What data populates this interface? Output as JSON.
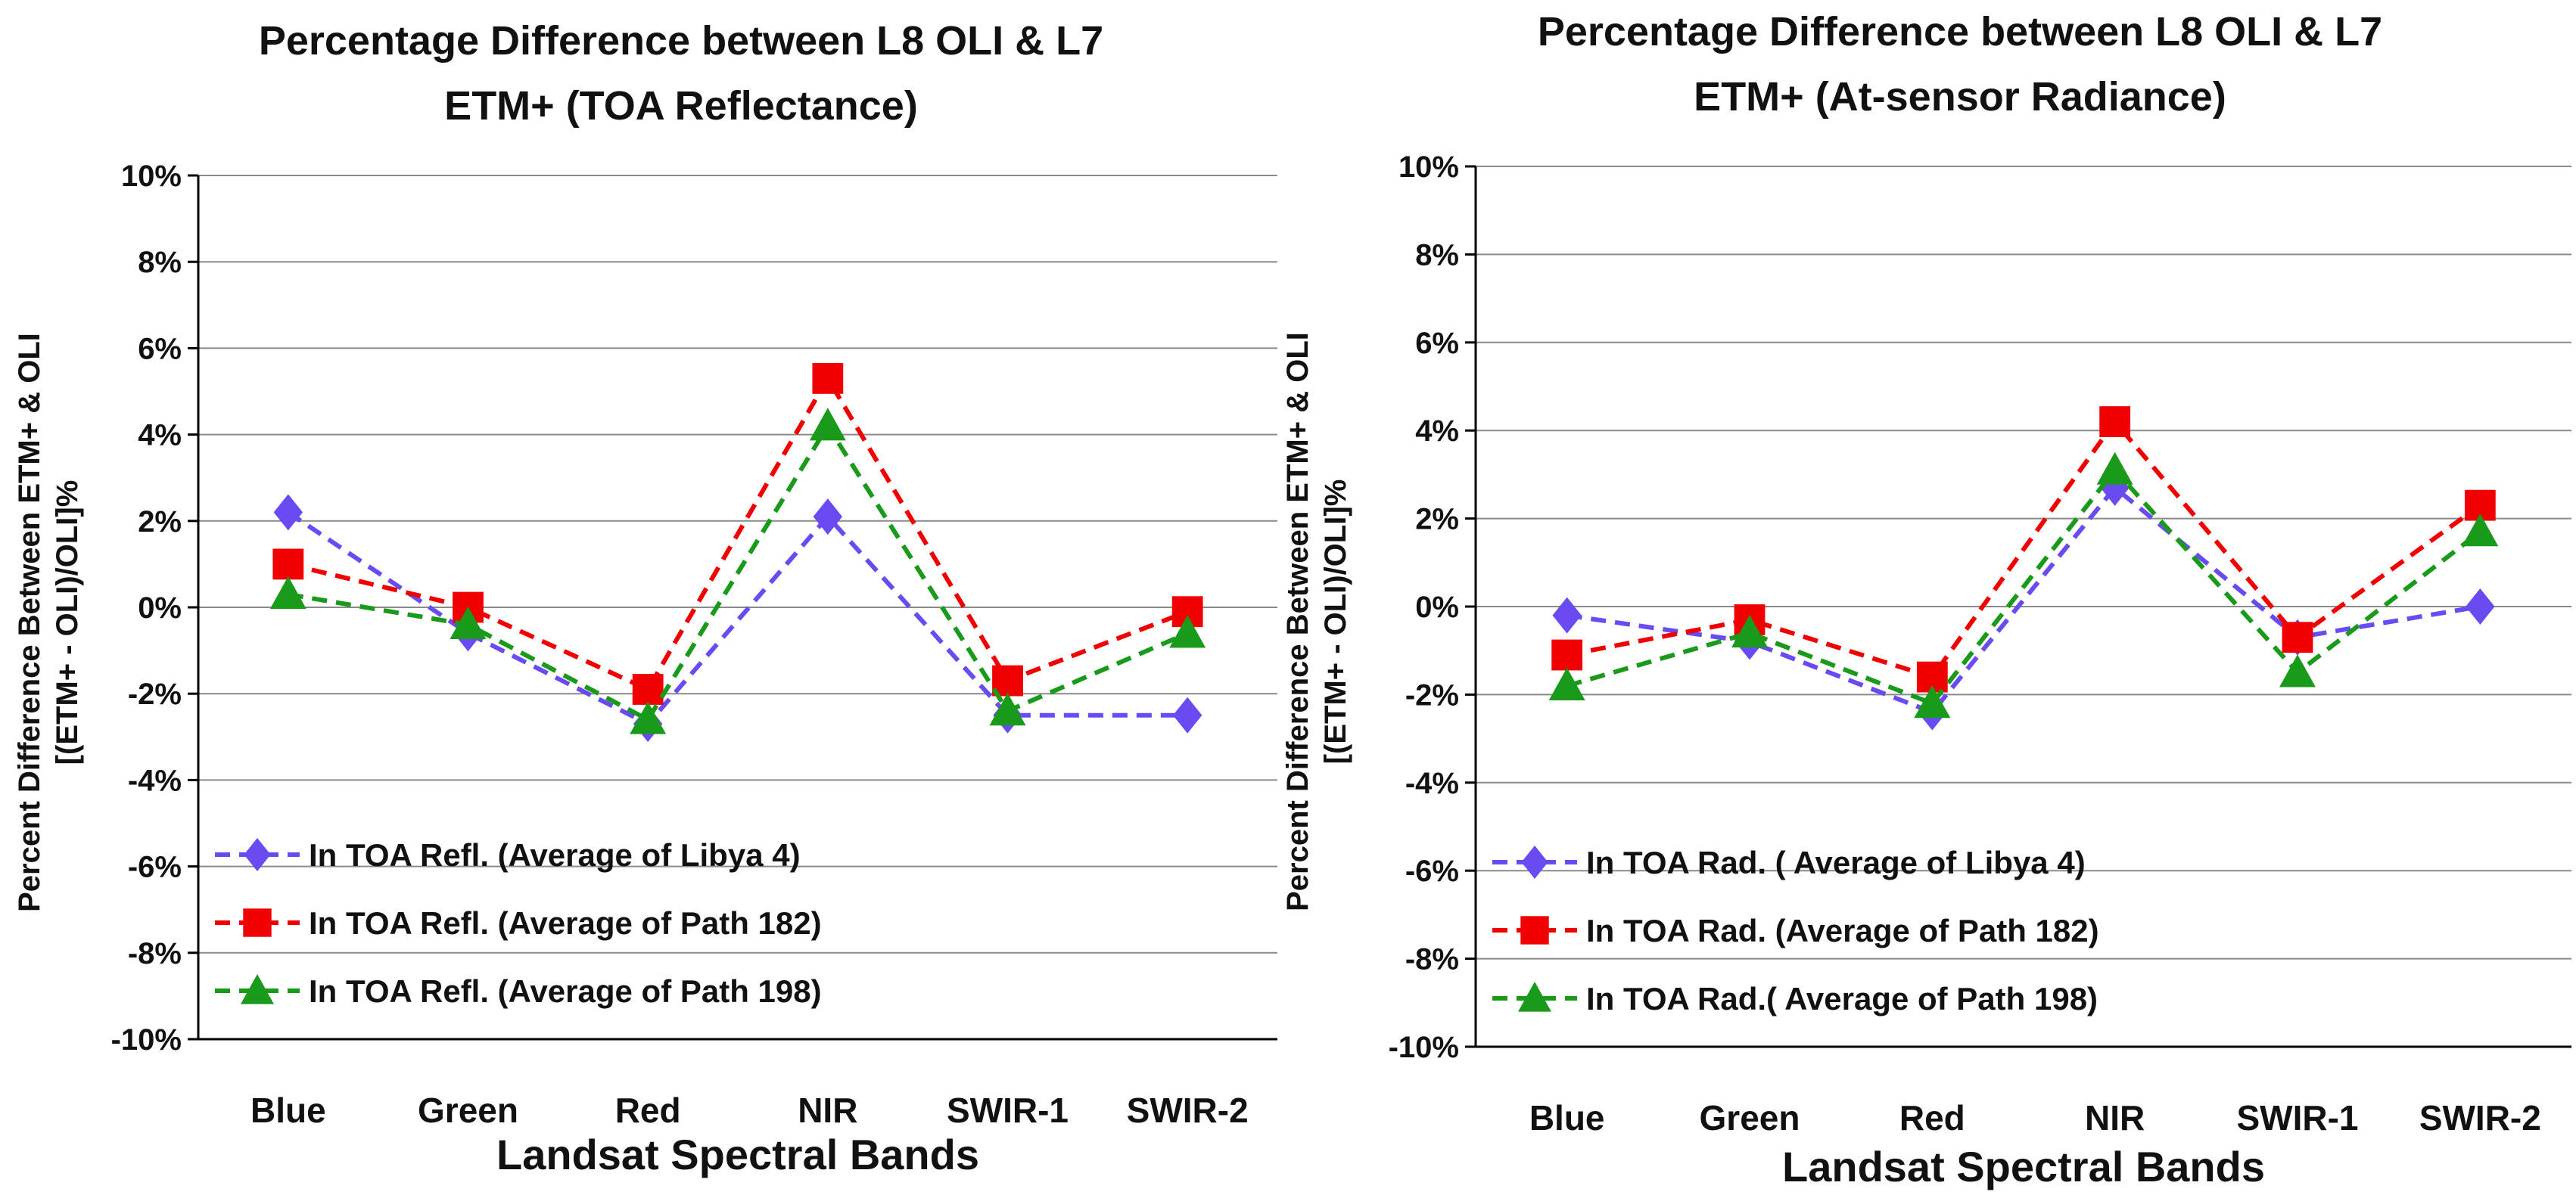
{
  "chart_data": [
    {
      "type": "line",
      "title_lines": [
        "Percentage Difference between L8 OLI & L7",
        "ETM+ (TOA Reflectance)"
      ],
      "xlabel": "Landsat Spectral Bands",
      "ylabel_lines": [
        "Percent Difference Between ETM+ & OLI",
        "[(ETM+ - OLI)/OLI]%"
      ],
      "categories": [
        "Blue",
        "Green",
        "Red",
        "NIR",
        "SWIR-1",
        "SWIR-2"
      ],
      "ylim": [
        -10,
        10
      ],
      "yticks": [
        "-10%",
        "-8%",
        "-6%",
        "-4%",
        "-2%",
        "0%",
        "2%",
        "4%",
        "6%",
        "8%",
        "10%"
      ],
      "grid": true,
      "legend_position": "bottom-left",
      "series": [
        {
          "name": "In TOA Refl. (Average of Libya 4)",
          "color": "#6a4bf2",
          "marker": "diamond",
          "values": [
            2.2,
            -0.6,
            -2.7,
            2.1,
            -2.5,
            -2.5
          ]
        },
        {
          "name": "In TOA Refl. (Average of Path 182)",
          "color": "#f00000",
          "marker": "square",
          "values": [
            1.0,
            0.0,
            -1.9,
            5.3,
            -1.7,
            -0.1
          ]
        },
        {
          "name": "In TOA Refl. (Average of Path 198)",
          "color": "#1a9a1a",
          "marker": "triangle",
          "values": [
            0.3,
            -0.4,
            -2.6,
            4.2,
            -2.4,
            -0.6
          ]
        }
      ]
    },
    {
      "type": "line",
      "title_lines": [
        "Percentage Difference between L8 OLI & L7",
        "ETM+ (At-sensor Radiance)"
      ],
      "xlabel": "Landsat Spectral Bands",
      "ylabel_lines": [
        "Percent Difference Between ETM+ & OLI",
        "[(ETM+ - OLI)/OLI]%"
      ],
      "categories": [
        "Blue",
        "Green",
        "Red",
        "NIR",
        "SWIR-1",
        "SWIR-2"
      ],
      "ylim": [
        -10,
        10
      ],
      "yticks": [
        "-10%",
        "-8%",
        "-6%",
        "-4%",
        "-2%",
        "0%",
        "2%",
        "4%",
        "6%",
        "8%",
        "10%"
      ],
      "grid": true,
      "legend_position": "bottom-left",
      "series": [
        {
          "name": "In TOA Rad. ( Average of Libya 4)",
          "color": "#6a4bf2",
          "marker": "diamond",
          "values": [
            -0.2,
            -0.8,
            -2.4,
            2.7,
            -0.7,
            0.0
          ]
        },
        {
          "name": "In TOA Rad. (Average of Path 182)",
          "color": "#f00000",
          "marker": "square",
          "values": [
            -1.1,
            -0.3,
            -1.6,
            4.2,
            -0.7,
            2.3
          ]
        },
        {
          "name": "In TOA Rad.( Average of Path 198)",
          "color": "#1a9a1a",
          "marker": "triangle",
          "values": [
            -1.8,
            -0.6,
            -2.2,
            3.1,
            -1.5,
            1.7
          ]
        }
      ]
    }
  ]
}
